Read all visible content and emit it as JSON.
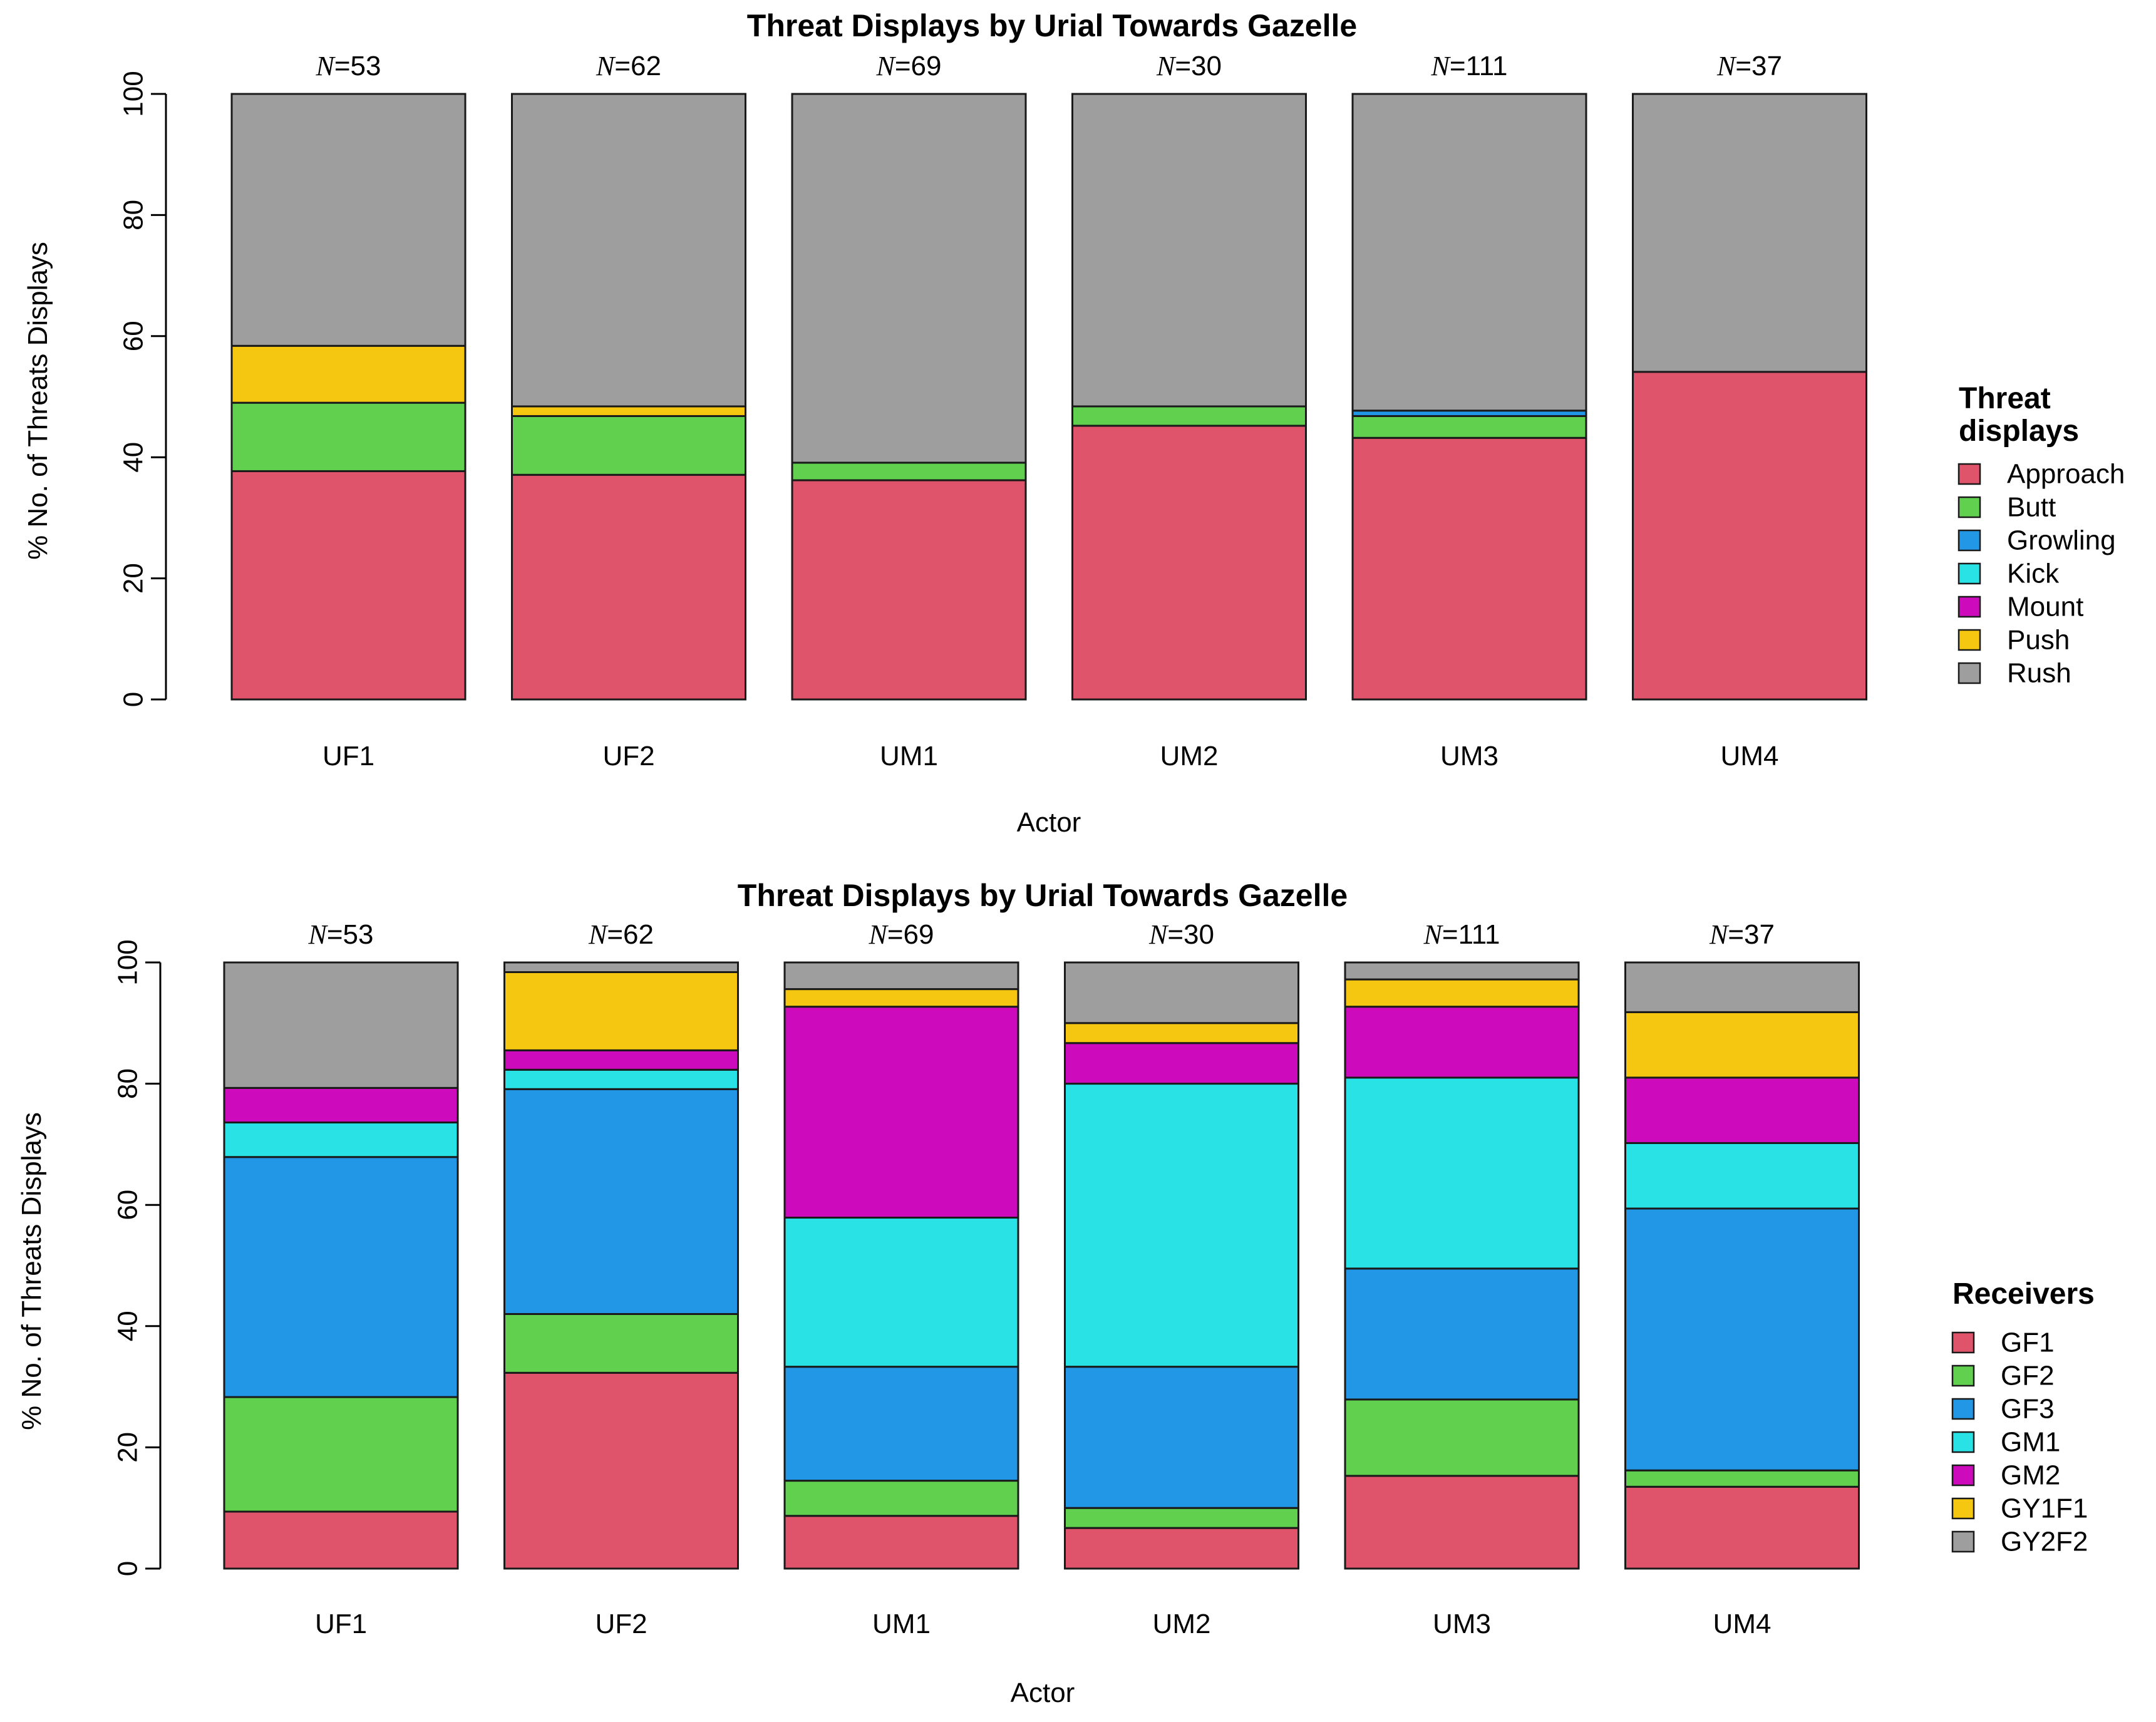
{
  "chart_data": [
    {
      "type": "bar",
      "stacked": true,
      "title": "Threat Displays by Urial Towards Gazelle",
      "xlabel": "Actor",
      "ylabel": "% No. of Threats Displays",
      "ylim": [
        0,
        100
      ],
      "yticks": [
        "0",
        "20",
        "40",
        "60",
        "80",
        "100"
      ],
      "categories": [
        "UF1",
        "UF2",
        "UM1",
        "UM2",
        "UM3",
        "UM4"
      ],
      "n_prefix": "N",
      "n_values": [
        "=53",
        "=62",
        "=69",
        "=30",
        "=111",
        "=37"
      ],
      "legend_title_lines": [
        "Threat",
        "displays"
      ],
      "legend_position": "right",
      "series": [
        {
          "name": "Approach",
          "color": "#DF536B",
          "values": [
            37.7,
            37.1,
            36.2,
            45.2,
            43.2,
            54.1
          ]
        },
        {
          "name": "Butt",
          "color": "#61D04F",
          "values": [
            11.3,
            9.7,
            2.9,
            3.2,
            3.6,
            0
          ]
        },
        {
          "name": "Growling",
          "color": "#2297E6",
          "values": [
            0,
            0,
            0,
            0,
            0.9,
            0
          ]
        },
        {
          "name": "Kick",
          "color": "#28E2E5",
          "values": [
            0,
            0,
            0,
            0,
            0,
            0
          ]
        },
        {
          "name": "Mount",
          "color": "#CD0BBC",
          "values": [
            0,
            0,
            0,
            0,
            0,
            0
          ]
        },
        {
          "name": "Push",
          "color": "#F5C710",
          "values": [
            9.4,
            1.6,
            0,
            0,
            0,
            0
          ]
        },
        {
          "name": "Rush",
          "color": "#9E9E9E",
          "values": [
            41.6,
            51.6,
            60.9,
            51.6,
            52.3,
            45.9
          ]
        }
      ]
    },
    {
      "type": "bar",
      "stacked": true,
      "title": "Threat Displays by Urial Towards Gazelle",
      "xlabel": "Actor",
      "ylabel": "% No. of Threats Displays",
      "ylim": [
        0,
        100
      ],
      "yticks": [
        "0",
        "20",
        "40",
        "60",
        "80",
        "100"
      ],
      "categories": [
        "UF1",
        "UF2",
        "UM1",
        "UM2",
        "UM3",
        "UM4"
      ],
      "n_prefix": "N",
      "n_values": [
        "=53",
        "=62",
        "=69",
        "=30",
        "=111",
        "=37"
      ],
      "legend_title_lines": [
        "Receivers"
      ],
      "legend_position": "right",
      "series": [
        {
          "name": "GF1",
          "color": "#DF536B",
          "values": [
            9.4,
            32.3,
            8.7,
            6.7,
            15.3,
            13.5
          ]
        },
        {
          "name": "GF2",
          "color": "#61D04F",
          "values": [
            18.9,
            9.7,
            5.8,
            3.3,
            12.6,
            2.7
          ]
        },
        {
          "name": "GF3",
          "color": "#2297E6",
          "values": [
            39.6,
            37.1,
            18.8,
            23.3,
            21.6,
            43.2
          ]
        },
        {
          "name": "GM1",
          "color": "#28E2E5",
          "values": [
            5.7,
            3.2,
            24.6,
            46.7,
            31.5,
            10.8
          ]
        },
        {
          "name": "GM2",
          "color": "#CD0BBC",
          "values": [
            5.7,
            3.2,
            34.8,
            6.7,
            11.7,
            10.8
          ]
        },
        {
          "name": "GY1F1",
          "color": "#F5C710",
          "values": [
            0,
            12.9,
            2.9,
            3.3,
            4.5,
            10.8
          ]
        },
        {
          "name": "GY2F2",
          "color": "#9E9E9E",
          "values": [
            20.7,
            1.6,
            4.4,
            10.0,
            2.8,
            8.2
          ]
        }
      ]
    }
  ]
}
